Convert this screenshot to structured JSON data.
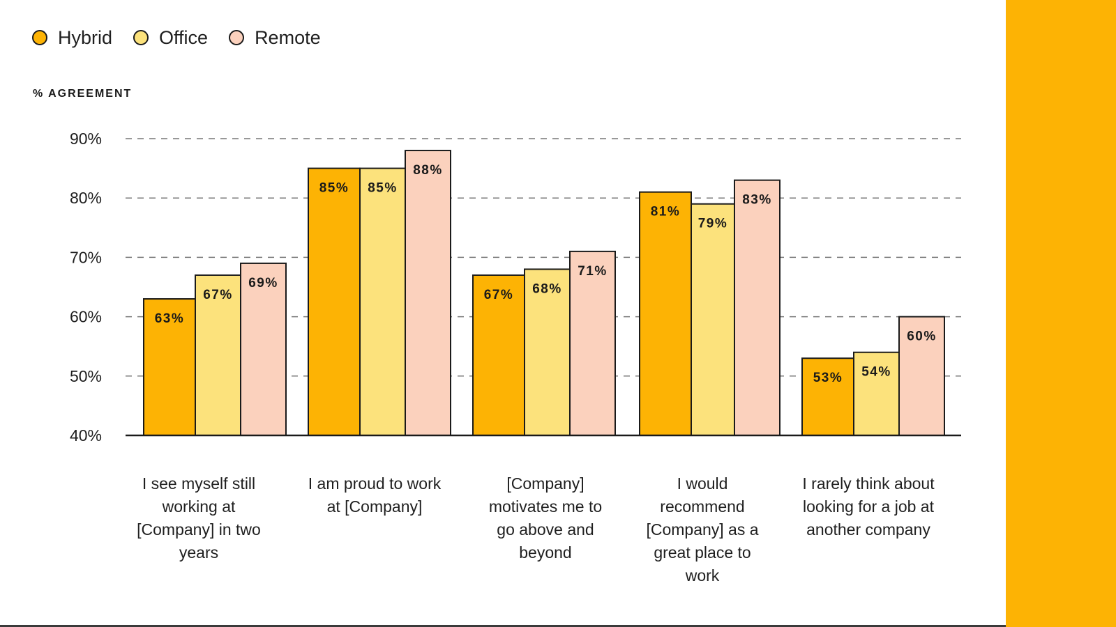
{
  "colors": {
    "side_panel": "#FDB304",
    "hybrid": "#FDB304",
    "office": "#FCE27C",
    "remote": "#FBD1BD",
    "stroke": "#1a1a1a",
    "grid": "#777777"
  },
  "legend": [
    {
      "label": "Hybrid",
      "color_key": "hybrid"
    },
    {
      "label": "Office",
      "color_key": "office"
    },
    {
      "label": "Remote",
      "color_key": "remote"
    }
  ],
  "chart_data": {
    "type": "bar",
    "ylabel": "% AGREEMENT",
    "ylim": [
      40,
      90
    ],
    "yticks": [
      "40%",
      "50%",
      "60%",
      "70%",
      "80%",
      "90%"
    ],
    "ytick_values": [
      40,
      50,
      60,
      70,
      80,
      90
    ],
    "grid": "dashed horizontal",
    "legend_position": "top-left",
    "categories": [
      "I see myself still working at [Company] in two years",
      "I am proud to work at [Company]",
      "[Company] motivates me to go above and beyond",
      "I would recommend [Company] as a great place to work",
      "I rarely think about looking for a job at another company"
    ],
    "category_lines": [
      [
        "I see myself still",
        "working at",
        "[Company] in two",
        "years"
      ],
      [
        "I am proud to work",
        "at [Company]"
      ],
      [
        "[Company]",
        "motivates me to",
        "go above and",
        "beyond"
      ],
      [
        "I would",
        "recommend",
        "[Company] as a",
        "great place to",
        "work"
      ],
      [
        "I rarely think about",
        "looking for a job at",
        "another company"
      ]
    ],
    "series": [
      {
        "name": "Hybrid",
        "values": [
          63,
          85,
          67,
          81,
          53
        ],
        "labels": [
          "63%",
          "85%",
          "67%",
          "81%",
          "53%"
        ]
      },
      {
        "name": "Office",
        "values": [
          67,
          85,
          68,
          79,
          54
        ],
        "labels": [
          "67%",
          "85%",
          "68%",
          "79%",
          "54%"
        ]
      },
      {
        "name": "Remote",
        "values": [
          69,
          88,
          71,
          83,
          60
        ],
        "labels": [
          "69%",
          "88%",
          "71%",
          "83%",
          "60%"
        ]
      }
    ]
  }
}
